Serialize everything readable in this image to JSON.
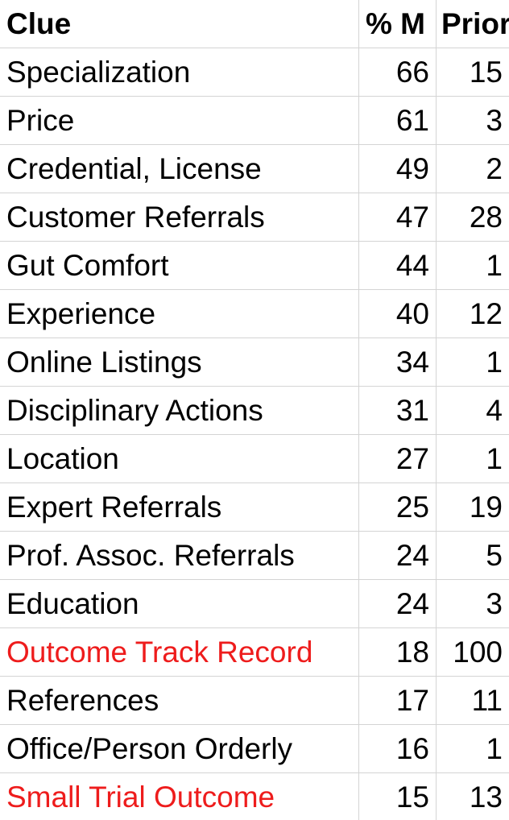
{
  "table": {
    "headers": {
      "clue": "Clue",
      "pct": "% M",
      "prior": "Prior"
    },
    "highlight_color": "#ee1c1c",
    "rows": [
      {
        "clue": "Specialization",
        "pct": "66",
        "prior": "15",
        "highlight": false
      },
      {
        "clue": "Price",
        "pct": "61",
        "prior": "3",
        "highlight": false
      },
      {
        "clue": "Credential, License",
        "pct": "49",
        "prior": "2",
        "highlight": false
      },
      {
        "clue": "Customer Referrals",
        "pct": "47",
        "prior": "28",
        "highlight": false
      },
      {
        "clue": "Gut Comfort",
        "pct": "44",
        "prior": "1",
        "highlight": false
      },
      {
        "clue": "Experience",
        "pct": "40",
        "prior": "12",
        "highlight": false
      },
      {
        "clue": "Online Listings",
        "pct": "34",
        "prior": "1",
        "highlight": false
      },
      {
        "clue": "Disciplinary Actions",
        "pct": "31",
        "prior": "4",
        "highlight": false
      },
      {
        "clue": "Location",
        "pct": "27",
        "prior": "1",
        "highlight": false
      },
      {
        "clue": "Expert Referrals",
        "pct": "25",
        "prior": "19",
        "highlight": false
      },
      {
        "clue": "Prof. Assoc. Referrals",
        "pct": "24",
        "prior": "5",
        "highlight": false
      },
      {
        "clue": "Education",
        "pct": "24",
        "prior": "3",
        "highlight": false
      },
      {
        "clue": "Outcome Track Record",
        "pct": "18",
        "prior": "100",
        "highlight": true
      },
      {
        "clue": "References",
        "pct": "17",
        "prior": "11",
        "highlight": false
      },
      {
        "clue": "Office/Person Orderly",
        "pct": "16",
        "prior": "1",
        "highlight": false
      },
      {
        "clue": "Small Trial Outcome",
        "pct": "15",
        "prior": "13",
        "highlight": true
      }
    ]
  }
}
